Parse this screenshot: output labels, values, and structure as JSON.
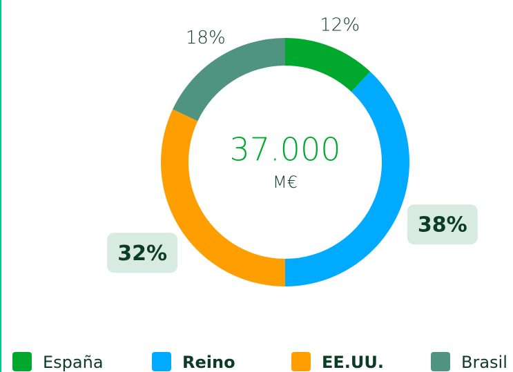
{
  "chart_data": {
    "type": "donut",
    "categories": [
      "España",
      "Reino",
      "EE.UU.",
      "Brasil"
    ],
    "values": [
      12,
      38,
      32,
      18
    ],
    "value_labels": [
      "12%",
      "38%",
      "32%",
      "18%"
    ],
    "colors": [
      "#00a82d",
      "#00aaff",
      "#ff9e00",
      "#4e9480"
    ],
    "bold": [
      false,
      true,
      true,
      false
    ],
    "center_value": "37.000",
    "center_unit": "M€"
  }
}
